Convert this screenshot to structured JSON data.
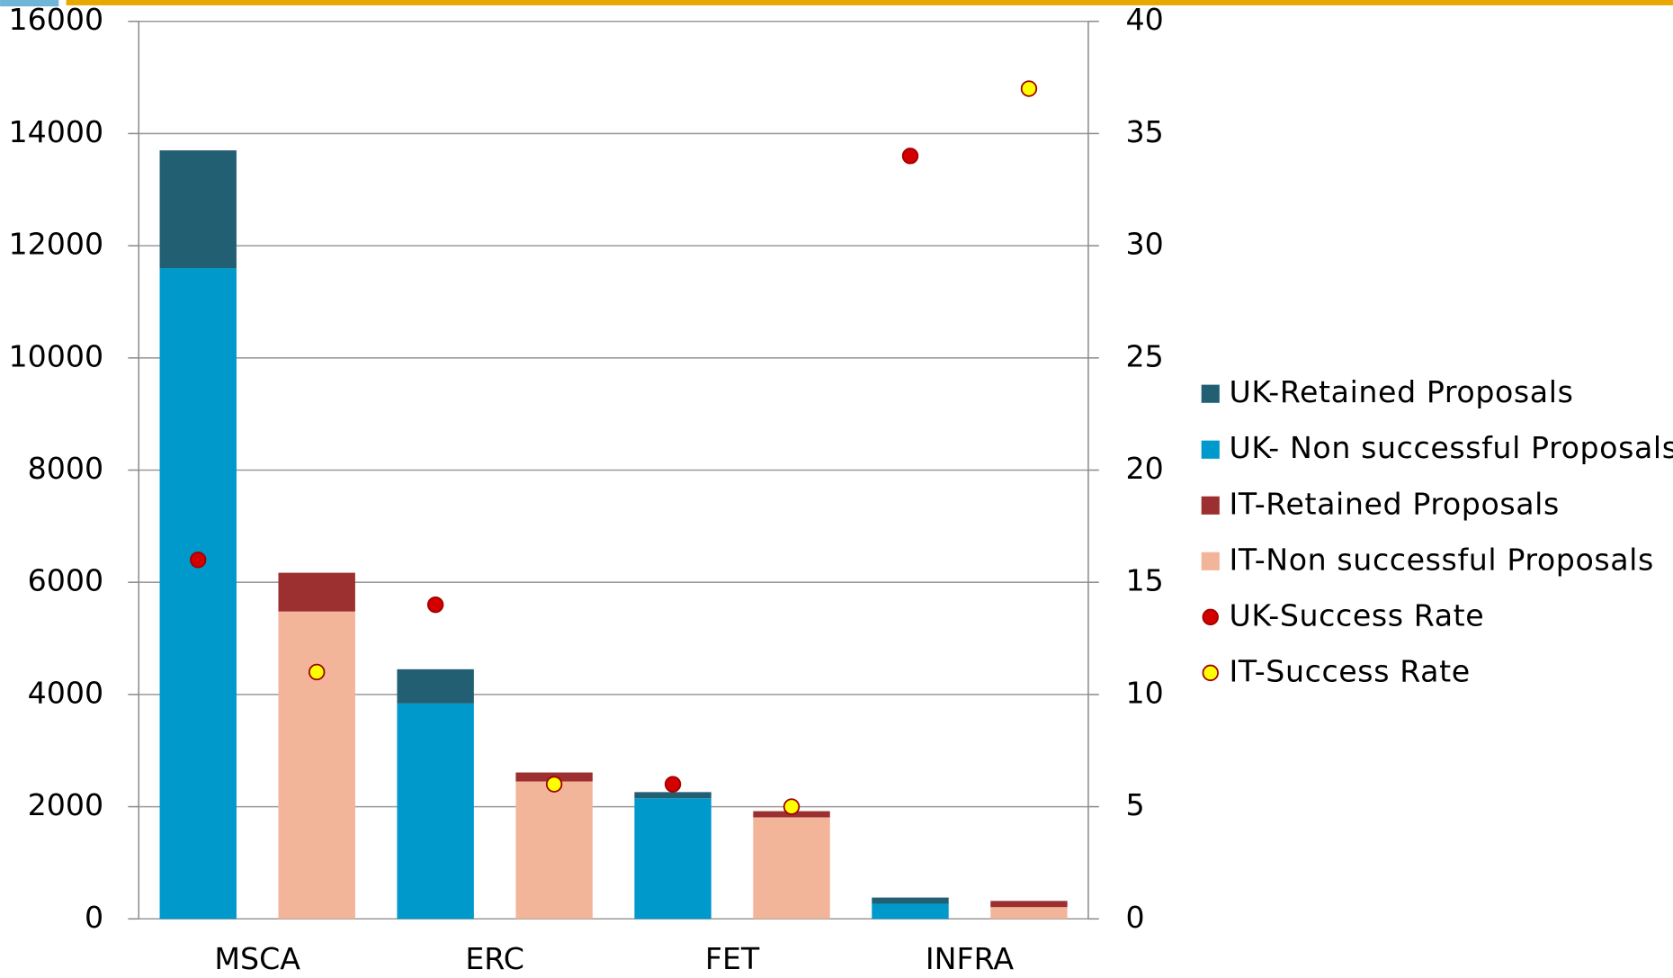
{
  "chart_data": {
    "type": "bar",
    "categories": [
      "MSCA",
      "ERC",
      "FET",
      "INFRA"
    ],
    "series": [
      {
        "name": "UK-Retained Proposals",
        "type": "bar",
        "color": "#235f73",
        "values": [
          2100,
          610,
          110,
          110
        ]
      },
      {
        "name": "UK- Non successful Proposals",
        "type": "bar",
        "color": "#0099cc",
        "values": [
          11600,
          3840,
          2150,
          270
        ]
      },
      {
        "name": "IT-Retained Proposals",
        "type": "bar",
        "color": "#9c2f2f",
        "values": [
          690,
          160,
          110,
          110
        ]
      },
      {
        "name": "IT-Non successful Proposals",
        "type": "bar",
        "color": "#f2b59a",
        "values": [
          5480,
          2450,
          1810,
          210
        ]
      },
      {
        "name": "UK-Success Rate",
        "type": "scatter",
        "axis": "y2",
        "color": "#d40000",
        "values": [
          16,
          14,
          6,
          34
        ]
      },
      {
        "name": "IT-Success Rate",
        "type": "scatter",
        "axis": "y2",
        "color": "#ffff00",
        "values": [
          11,
          6,
          5,
          37
        ]
      }
    ],
    "ylim": [
      0,
      16000
    ],
    "yticks": [
      0,
      2000,
      4000,
      6000,
      8000,
      10000,
      12000,
      14000,
      16000
    ],
    "y2lim": [
      0,
      40
    ],
    "y2ticks": [
      0,
      5,
      10,
      15,
      20,
      25,
      30,
      35,
      40
    ],
    "grid": true,
    "legend": "right"
  }
}
